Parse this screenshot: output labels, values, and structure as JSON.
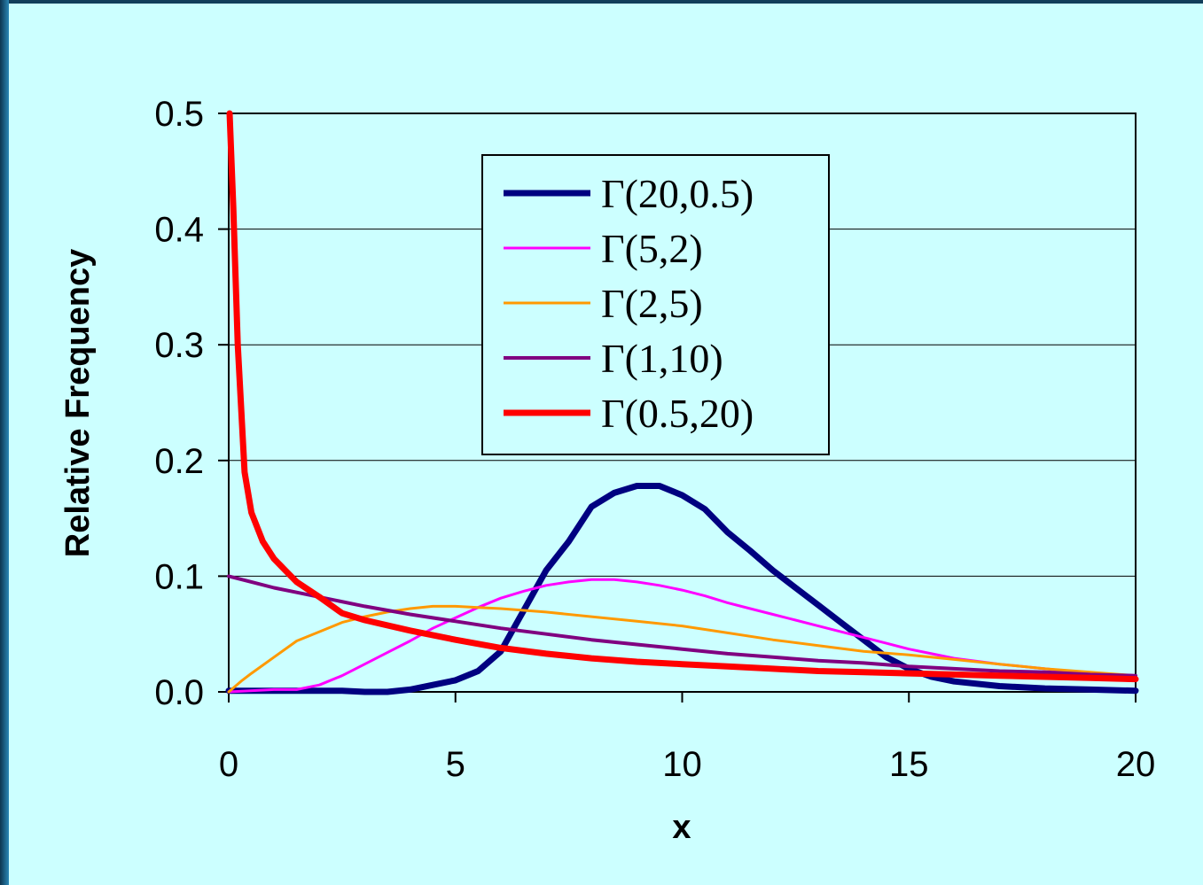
{
  "chart_data": {
    "type": "line",
    "xlabel": "x",
    "ylabel": "Relative Frequency",
    "xlim": [
      0,
      20
    ],
    "ylim": [
      0,
      0.5
    ],
    "x_ticks": [
      "0",
      "5",
      "10",
      "15",
      "20"
    ],
    "y_ticks": [
      "0.0",
      "0.1",
      "0.2",
      "0.3",
      "0.4",
      "0.5"
    ],
    "grid": "horizontal",
    "legend_position": "top-center",
    "series": [
      {
        "name": "Γ(20,0.5)",
        "color": "#000080",
        "x": [
          0,
          1,
          2,
          2.5,
          3,
          3.5,
          4,
          4.5,
          5,
          5.5,
          6,
          6.5,
          7,
          7.5,
          8,
          8.5,
          9,
          9.5,
          10,
          10.5,
          11,
          11.5,
          12,
          12.5,
          13,
          13.5,
          14,
          14.5,
          15,
          15.5,
          16,
          17,
          18,
          19,
          20
        ],
        "y": [
          0.001,
          0.001,
          0.001,
          0.001,
          0.0,
          0.0,
          0.002,
          0.006,
          0.01,
          0.018,
          0.035,
          0.07,
          0.105,
          0.13,
          0.16,
          0.172,
          0.178,
          0.178,
          0.17,
          0.158,
          0.138,
          0.122,
          0.105,
          0.09,
          0.075,
          0.06,
          0.045,
          0.03,
          0.02,
          0.013,
          0.009,
          0.005,
          0.003,
          0.002,
          0.001
        ]
      },
      {
        "name": "Γ(5,2)",
        "color": "#ff00ff",
        "x": [
          0,
          1,
          1.5,
          2,
          2.5,
          3,
          3.5,
          4,
          4.5,
          5,
          5.5,
          6,
          6.5,
          7,
          7.5,
          8,
          8.5,
          9,
          9.5,
          10,
          10.5,
          11,
          11.5,
          12,
          12.5,
          13,
          13.5,
          14,
          14.5,
          15,
          15.5,
          16,
          17,
          18,
          19,
          20
        ],
        "y": [
          0.0,
          0.002,
          0.002,
          0.006,
          0.014,
          0.024,
          0.034,
          0.044,
          0.055,
          0.064,
          0.073,
          0.081,
          0.087,
          0.092,
          0.095,
          0.097,
          0.097,
          0.095,
          0.092,
          0.088,
          0.083,
          0.077,
          0.072,
          0.067,
          0.062,
          0.057,
          0.052,
          0.047,
          0.042,
          0.037,
          0.033,
          0.029,
          0.024,
          0.02,
          0.016,
          0.012
        ]
      },
      {
        "name": "Γ(2,5)",
        "color": "#ff9900",
        "x": [
          0,
          0.3,
          0.5,
          1,
          1.5,
          2,
          2.5,
          3,
          3.5,
          4,
          4.5,
          5,
          5.5,
          6,
          7,
          8,
          9,
          10,
          11,
          12,
          13,
          14,
          15,
          16,
          17,
          18,
          19,
          20
        ],
        "y": [
          0.0,
          0.01,
          0.016,
          0.03,
          0.044,
          0.052,
          0.06,
          0.065,
          0.069,
          0.072,
          0.074,
          0.074,
          0.073,
          0.072,
          0.069,
          0.065,
          0.061,
          0.057,
          0.051,
          0.045,
          0.04,
          0.035,
          0.032,
          0.028,
          0.024,
          0.02,
          0.017,
          0.014
        ]
      },
      {
        "name": "Γ(1,10)",
        "color": "#800080",
        "x": [
          0,
          0.5,
          1,
          1.5,
          2,
          3,
          4,
          5,
          6,
          7,
          8,
          9,
          10,
          11,
          12,
          13,
          14,
          15,
          16,
          17,
          18,
          19,
          20
        ],
        "y": [
          0.1,
          0.095,
          0.09,
          0.086,
          0.082,
          0.074,
          0.067,
          0.061,
          0.055,
          0.05,
          0.045,
          0.041,
          0.037,
          0.033,
          0.03,
          0.027,
          0.025,
          0.022,
          0.02,
          0.018,
          0.017,
          0.015,
          0.014
        ]
      },
      {
        "name": "Γ(0.5,20)",
        "color": "#ff0000",
        "x": [
          0.02,
          0.1,
          0.2,
          0.35,
          0.5,
          0.75,
          1,
          1.25,
          1.5,
          2,
          2.5,
          3,
          4,
          5,
          6,
          7,
          8,
          9,
          10,
          11,
          12,
          13,
          14,
          15,
          16,
          17,
          18,
          19,
          20
        ],
        "y": [
          0.5,
          0.42,
          0.3,
          0.19,
          0.155,
          0.13,
          0.115,
          0.105,
          0.095,
          0.082,
          0.068,
          0.062,
          0.053,
          0.045,
          0.038,
          0.033,
          0.029,
          0.026,
          0.024,
          0.022,
          0.02,
          0.018,
          0.017,
          0.016,
          0.015,
          0.014,
          0.013,
          0.012,
          0.011
        ]
      }
    ]
  }
}
